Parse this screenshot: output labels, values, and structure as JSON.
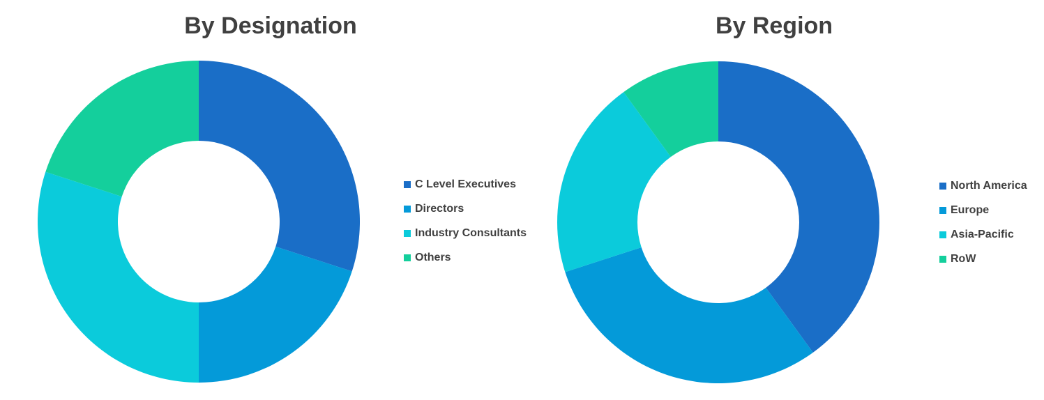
{
  "chart_data": [
    {
      "type": "pie",
      "title": "By Designation",
      "categories": [
        "C Level Executives",
        "Directors",
        "Industry Consultants",
        "Others"
      ],
      "values": [
        30,
        20,
        30,
        20
      ],
      "colors": [
        "#1a6ec7",
        "#049ad9",
        "#0bcbdb",
        "#14cf9c"
      ],
      "donut": true,
      "legend_position": "right"
    },
    {
      "type": "pie",
      "title": "By Region",
      "categories": [
        "North America",
        "Europe",
        "Asia-Pacific",
        "RoW"
      ],
      "values": [
        40,
        30,
        20,
        10
      ],
      "colors": [
        "#1a6ec7",
        "#049ad9",
        "#0bcbdb",
        "#14cf9c"
      ],
      "donut": true,
      "legend_position": "right"
    }
  ]
}
